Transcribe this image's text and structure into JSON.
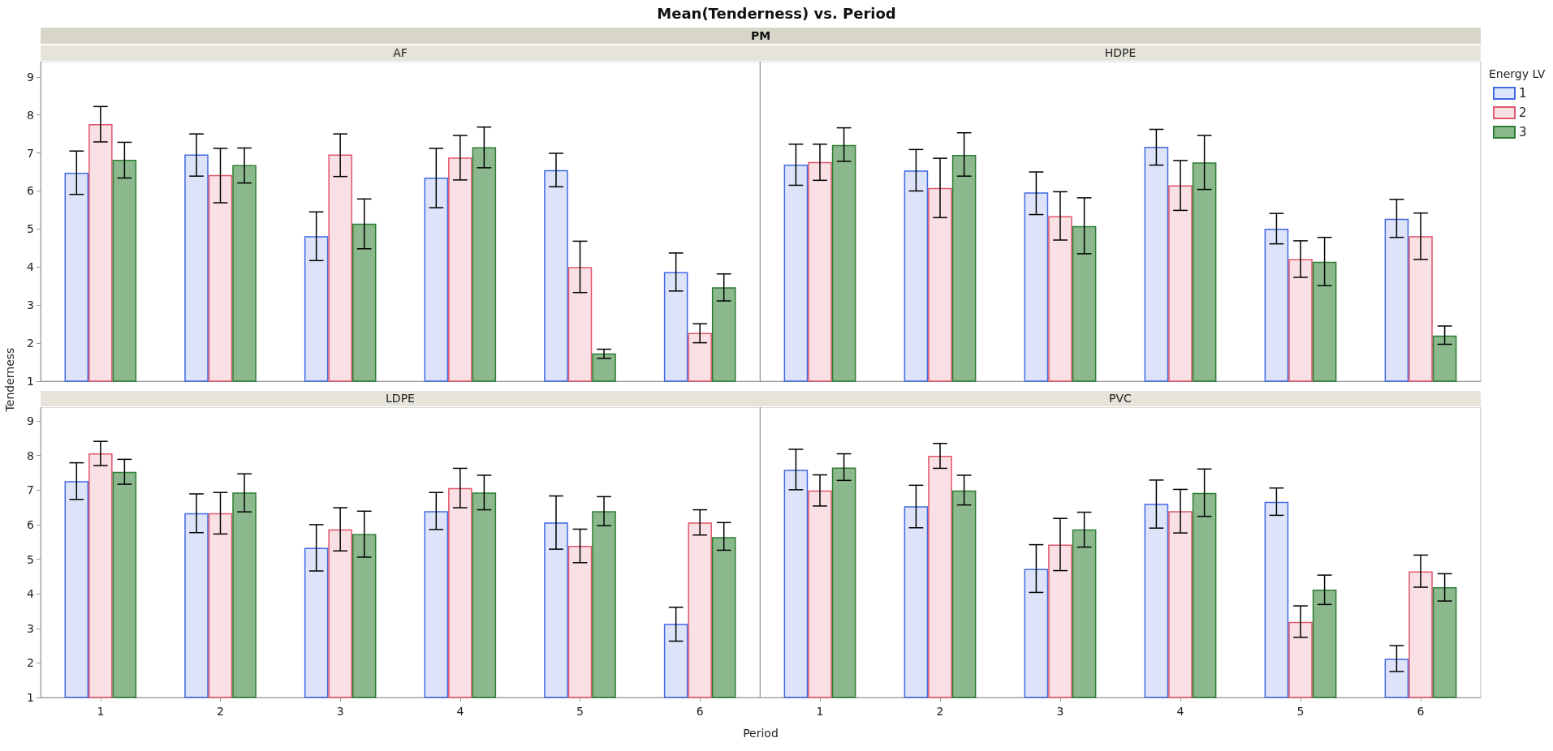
{
  "chart_data": [
    {
      "type": "bar",
      "title": "AF",
      "ylabel": "Tenderness",
      "annotations": [
        "Mean(Tenderness) vs. Period",
        "PM"
      ],
      "categories": [
        "1",
        "2",
        "3",
        "4",
        "5",
        "6"
      ],
      "ylim": [
        1,
        9.4
      ],
      "yticks": [
        1,
        2,
        3,
        4,
        5,
        6,
        7,
        8,
        9
      ],
      "tick_labels": "y",
      "legend": false,
      "series": [
        {
          "color": "#4169e1",
          "values": [
            6.48,
            6.96,
            4.81,
            6.35,
            6.55,
            3.87
          ],
          "errors": [
            [
              5.91,
              7.05
            ],
            [
              6.39,
              7.5
            ],
            [
              4.17,
              5.45
            ],
            [
              5.56,
              7.12
            ],
            [
              6.11,
              6.99
            ],
            [
              3.37,
              4.37
            ]
          ]
        },
        {
          "color": "#e0556b",
          "values": [
            7.76,
            6.42,
            6.96,
            6.88,
            4.0,
            2.27
          ],
          "errors": [
            [
              7.29,
              8.22
            ],
            [
              5.69,
              7.12
            ],
            [
              6.38,
              7.5
            ],
            [
              6.29,
              7.46
            ],
            [
              3.33,
              4.68
            ],
            [
              2.01,
              2.51
            ]
          ]
        },
        {
          "color": "#2e7d32",
          "values": [
            6.82,
            6.68,
            5.14,
            7.15,
            1.73,
            3.47
          ],
          "errors": [
            [
              6.34,
              7.28
            ],
            [
              6.21,
              7.13
            ],
            [
              4.48,
              5.79
            ],
            [
              6.61,
              7.68
            ],
            [
              1.6,
              1.84
            ],
            [
              3.11,
              3.82
            ]
          ]
        }
      ]
    },
    {
      "type": "bar",
      "title": "HDPE",
      "legend_title": "Energy LV",
      "categories": [
        "1",
        "2",
        "3",
        "4",
        "5",
        "6"
      ],
      "ylim": [
        1,
        9.4
      ],
      "yticks": [
        1,
        2,
        3,
        4,
        5,
        6,
        7,
        8,
        9
      ],
      "tick_labels": false,
      "legend": "right",
      "series": [
        {
          "name": "1",
          "color": "#4169e1",
          "values": [
            6.69,
            6.54,
            5.96,
            7.16,
            5.01,
            5.27
          ],
          "errors": [
            [
              6.15,
              7.23
            ],
            [
              6.0,
              7.09
            ],
            [
              5.38,
              6.5
            ],
            [
              6.68,
              7.62
            ],
            [
              4.61,
              5.41
            ],
            [
              4.78,
              5.78
            ]
          ]
        },
        {
          "name": "2",
          "color": "#e0556b",
          "values": [
            6.76,
            6.08,
            5.34,
            6.15,
            4.21,
            4.81
          ],
          "errors": [
            [
              6.28,
              7.23
            ],
            [
              5.3,
              6.86
            ],
            [
              4.71,
              5.98
            ],
            [
              5.49,
              6.8
            ],
            [
              3.73,
              4.69
            ],
            [
              4.2,
              5.42
            ]
          ]
        },
        {
          "name": "3",
          "color": "#2e7d32",
          "values": [
            7.21,
            6.95,
            5.08,
            6.75,
            4.14,
            2.2
          ],
          "errors": [
            [
              6.78,
              7.66
            ],
            [
              6.39,
              7.53
            ],
            [
              4.35,
              5.82
            ],
            [
              6.04,
              7.46
            ],
            [
              3.51,
              4.78
            ],
            [
              1.97,
              2.45
            ]
          ]
        }
      ]
    },
    {
      "type": "bar",
      "title": "LDPE",
      "xlabel": "Period",
      "categories": [
        "1",
        "2",
        "3",
        "4",
        "5",
        "6"
      ],
      "ylim": [
        1,
        9.4
      ],
      "yticks": [
        1,
        2,
        3,
        4,
        5,
        6,
        7,
        8,
        9
      ],
      "legend": false,
      "series": [
        {
          "color": "#4169e1",
          "values": [
            7.26,
            6.33,
            5.33,
            6.39,
            6.06,
            3.13
          ],
          "errors": [
            [
              6.73,
              7.79
            ],
            [
              5.77,
              6.89
            ],
            [
              4.66,
              6.0
            ],
            [
              5.86,
              6.93
            ],
            [
              5.29,
              6.83
            ],
            [
              2.63,
              3.61
            ]
          ]
        },
        {
          "color": "#e0556b",
          "values": [
            8.06,
            6.33,
            5.86,
            7.06,
            5.39,
            6.06
          ],
          "errors": [
            [
              7.71,
              8.41
            ],
            [
              5.73,
              6.93
            ],
            [
              5.24,
              6.49
            ],
            [
              6.49,
              7.63
            ],
            [
              4.9,
              5.87
            ],
            [
              5.7,
              6.43
            ]
          ]
        },
        {
          "color": "#2e7d32",
          "values": [
            7.53,
            6.93,
            5.73,
            6.93,
            6.39,
            5.64
          ],
          "errors": [
            [
              7.17,
              7.89
            ],
            [
              6.37,
              7.47
            ],
            [
              5.06,
              6.39
            ],
            [
              6.43,
              7.43
            ],
            [
              5.97,
              6.81
            ],
            [
              5.26,
              6.06
            ]
          ]
        }
      ]
    },
    {
      "type": "bar",
      "title": "PVC",
      "categories": [
        "1",
        "2",
        "3",
        "4",
        "5",
        "6"
      ],
      "ylim": [
        1,
        9.4
      ],
      "yticks": [
        1,
        2,
        3,
        4,
        5,
        6,
        7,
        8,
        9
      ],
      "tick_labels": "x",
      "legend": false,
      "series": [
        {
          "color": "#4169e1",
          "values": [
            7.59,
            6.53,
            4.72,
            6.6,
            6.66,
            2.12
          ],
          "errors": [
            [
              7.01,
              8.18
            ],
            [
              5.91,
              7.14
            ],
            [
              4.04,
              5.42
            ],
            [
              5.9,
              7.29
            ],
            [
              6.27,
              7.06
            ],
            [
              1.75,
              2.5
            ]
          ]
        },
        {
          "color": "#e0556b",
          "values": [
            6.99,
            7.99,
            5.42,
            6.39,
            3.19,
            4.65
          ],
          "errors": [
            [
              6.54,
              7.44
            ],
            [
              7.63,
              8.35
            ],
            [
              4.67,
              6.18
            ],
            [
              5.76,
              7.02
            ],
            [
              2.74,
              3.65
            ],
            [
              4.19,
              5.12
            ]
          ]
        },
        {
          "color": "#2e7d32",
          "values": [
            7.65,
            6.99,
            5.86,
            6.92,
            4.12,
            4.19
          ],
          "errors": [
            [
              7.28,
              8.05
            ],
            [
              6.57,
              7.43
            ],
            [
              5.35,
              6.36
            ],
            [
              6.24,
              7.61
            ],
            [
              3.69,
              4.54
            ],
            [
              3.79,
              4.58
            ]
          ]
        }
      ]
    }
  ]
}
